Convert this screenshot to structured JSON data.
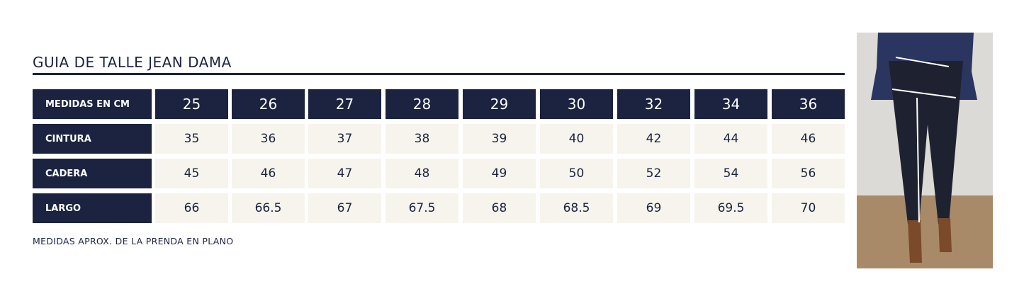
{
  "title": "GUIA DE TALLE JEAN DAMA",
  "table": {
    "header": [
      "MEDIDAS EN CM",
      "25",
      "26",
      "27",
      "28",
      "29",
      "30",
      "32",
      "34",
      "36"
    ],
    "rows": [
      [
        "CINTURA",
        "35",
        "36",
        "37",
        "38",
        "39",
        "40",
        "42",
        "44",
        "46"
      ],
      [
        "CADERA",
        "45",
        "46",
        "47",
        "48",
        "49",
        "50",
        "52",
        "54",
        "56"
      ],
      [
        "LARGO",
        "66",
        "66.5",
        "67",
        "67.5",
        "68",
        "68.5",
        "69",
        "69.5",
        "70"
      ]
    ]
  },
  "note": "MEDIDAS APROX. DE LA PRENDA EN PLANO"
}
